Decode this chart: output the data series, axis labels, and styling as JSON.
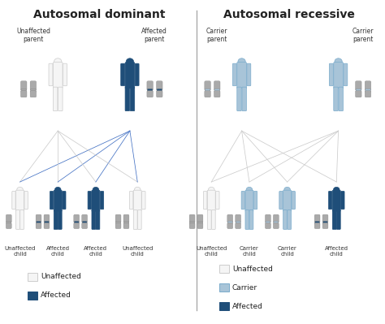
{
  "title_left": "Autosomal dominant",
  "title_right": "Autosomal recessive",
  "bg_color": "#ffffff",
  "divider_color": "#aaaaaa",
  "colors": {
    "unaffected": "#f5f5f5",
    "unaffected_stroke": "#cccccc",
    "carrier": "#a8c4d8",
    "carrier_stroke": "#7aabcb",
    "affected": "#1f4e79",
    "affected_stroke": "#1f4e79",
    "chr_gray": "#aaaaaa",
    "chr_gray_stroke": "#888888",
    "line_unaffected": "#cccccc",
    "line_affected": "#4472c4"
  },
  "legend_left": {
    "items": [
      {
        "label": "Unaffected",
        "color": "#f5f5f5",
        "stroke": "#cccccc"
      },
      {
        "label": "Affected",
        "color": "#1f4e79",
        "stroke": "#1f4e79"
      }
    ]
  },
  "legend_right": {
    "items": [
      {
        "label": "Unaffected",
        "color": "#f5f5f5",
        "stroke": "#cccccc"
      },
      {
        "label": "Carrier",
        "color": "#a8c4d8",
        "stroke": "#7aabcb"
      },
      {
        "label": "Affected",
        "color": "#1f4e79",
        "stroke": "#1f4e79"
      }
    ]
  }
}
